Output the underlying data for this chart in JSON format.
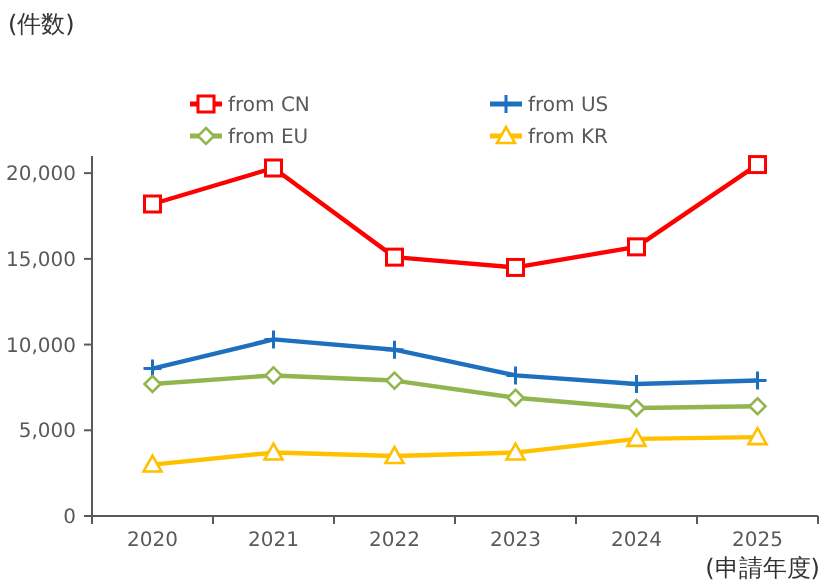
{
  "chart_data": {
    "type": "line",
    "ylabel": "(件数)",
    "xlabel": "(申請年度)",
    "categories": [
      "2020",
      "2021",
      "2022",
      "2023",
      "2024",
      "2025"
    ],
    "series": [
      {
        "name": "from CN",
        "color": "#ff0000",
        "marker": "square",
        "values": [
          18200,
          20300,
          15100,
          14500,
          15700,
          20500
        ]
      },
      {
        "name": "from US",
        "color": "#1f6fbf",
        "marker": "cross",
        "values": [
          8600,
          10300,
          9700,
          8200,
          7700,
          7900
        ]
      },
      {
        "name": "from EU",
        "color": "#92b550",
        "marker": "diamond",
        "values": [
          7700,
          8200,
          7900,
          6900,
          6300,
          6400
        ]
      },
      {
        "name": "from KR",
        "color": "#ffc000",
        "marker": "triangle",
        "values": [
          3000,
          3700,
          3500,
          3700,
          4500,
          4600
        ]
      }
    ],
    "ylim": [
      0,
      21000
    ],
    "yticks": [
      0,
      {
        "value": 5000,
        "label": "5,000"
      },
      {
        "value": 10000,
        "label": "10,000"
      },
      {
        "value": 15000,
        "label": "15,000"
      },
      {
        "value": 20000,
        "label": "20,000"
      }
    ],
    "legend": "top",
    "grid": false
  }
}
